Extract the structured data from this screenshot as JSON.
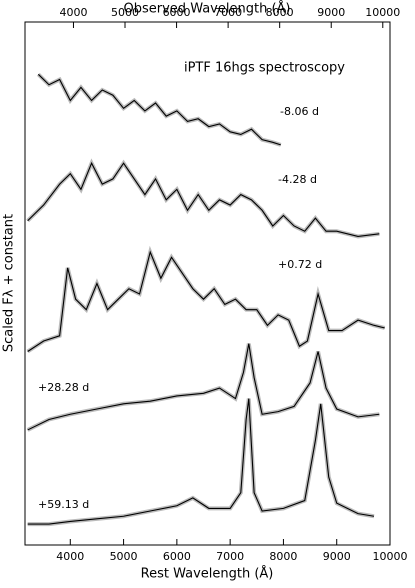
{
  "chart_data": {
    "type": "line",
    "title": "iPTF 16hgs spectroscopy",
    "xlabel": "Rest Wavelength (Å)",
    "x2label": "Observed Wavelength (Å)",
    "ylabel": "Scaled Fλ + constant",
    "xlim": [
      3150,
      10000
    ],
    "xticks": [
      4000,
      5000,
      6000,
      7000,
      8000,
      9000,
      10000
    ],
    "x2lim": [
      3060,
      10140
    ],
    "x2ticks": [
      4000,
      5000,
      6000,
      7000,
      8000,
      9000,
      10000
    ],
    "ylim": [
      0,
      10
    ],
    "series": [
      {
        "name": "-8.06 d",
        "color": "#000000",
        "x": [
          3400,
          3600,
          3800,
          4000,
          4200,
          4400,
          4600,
          4800,
          5000,
          5200,
          5400,
          5600,
          5800,
          6000,
          6200,
          6400,
          6600,
          6800,
          7000,
          7200,
          7400,
          7600,
          7800,
          7950
        ],
        "values": [
          9.0,
          8.8,
          8.9,
          8.5,
          8.75,
          8.5,
          8.7,
          8.6,
          8.35,
          8.5,
          8.3,
          8.45,
          8.2,
          8.3,
          8.1,
          8.15,
          8.0,
          8.05,
          7.9,
          7.85,
          7.95,
          7.75,
          7.7,
          7.65
        ]
      },
      {
        "name": "-4.28 d",
        "color": "#000000",
        "x": [
          3200,
          3500,
          3800,
          4000,
          4200,
          4400,
          4600,
          4800,
          5000,
          5200,
          5400,
          5600,
          5800,
          6000,
          6200,
          6400,
          6600,
          6800,
          7000,
          7200,
          7400,
          7600,
          7800,
          8000,
          8200,
          8400,
          8600,
          8800,
          9000,
          9400,
          9800
        ],
        "values": [
          6.2,
          6.5,
          6.9,
          7.1,
          6.8,
          7.3,
          6.9,
          7.0,
          7.3,
          7.0,
          6.7,
          7.0,
          6.6,
          6.8,
          6.4,
          6.7,
          6.4,
          6.6,
          6.5,
          6.7,
          6.6,
          6.4,
          6.1,
          6.3,
          6.1,
          6.0,
          6.25,
          6.0,
          6.0,
          5.9,
          5.95
        ]
      },
      {
        "name": "+0.72 d",
        "color": "#000000",
        "x": [
          3200,
          3500,
          3800,
          3950,
          4100,
          4300,
          4500,
          4700,
          4900,
          5100,
          5300,
          5500,
          5700,
          5900,
          6100,
          6300,
          6500,
          6700,
          6900,
          7100,
          7300,
          7500,
          7700,
          7900,
          8100,
          8300,
          8450,
          8650,
          8850,
          9100,
          9400,
          9700,
          9900
        ],
        "values": [
          3.7,
          3.9,
          4.0,
          5.3,
          4.7,
          4.5,
          5.0,
          4.5,
          4.7,
          4.9,
          4.8,
          5.6,
          5.1,
          5.5,
          5.2,
          4.9,
          4.7,
          4.9,
          4.6,
          4.7,
          4.5,
          4.5,
          4.2,
          4.4,
          4.3,
          3.8,
          3.9,
          4.8,
          4.1,
          4.1,
          4.3,
          4.2,
          4.15
        ]
      },
      {
        "name": "+28.28 d",
        "color": "#000000",
        "x": [
          3200,
          3600,
          4000,
          4500,
          5000,
          5500,
          6000,
          6500,
          6800,
          7100,
          7250,
          7350,
          7450,
          7600,
          7900,
          8200,
          8500,
          8650,
          8800,
          9000,
          9400,
          9800
        ],
        "values": [
          2.2,
          2.4,
          2.5,
          2.6,
          2.7,
          2.75,
          2.85,
          2.9,
          3.0,
          2.8,
          3.3,
          3.85,
          3.2,
          2.5,
          2.55,
          2.65,
          3.1,
          3.7,
          3.0,
          2.6,
          2.45,
          2.5
        ]
      },
      {
        "name": "+59.13 d",
        "color": "#000000",
        "x": [
          3200,
          3600,
          4000,
          4500,
          5000,
          5500,
          6000,
          6300,
          6600,
          7000,
          7200,
          7300,
          7350,
          7450,
          7600,
          8000,
          8400,
          8600,
          8700,
          8850,
          9000,
          9400,
          9700
        ],
        "values": [
          0.4,
          0.4,
          0.45,
          0.5,
          0.55,
          0.65,
          0.75,
          0.9,
          0.7,
          0.7,
          1.0,
          2.4,
          2.8,
          1.0,
          0.65,
          0.7,
          0.85,
          2.0,
          2.7,
          1.3,
          0.8,
          0.6,
          0.55
        ]
      }
    ]
  }
}
